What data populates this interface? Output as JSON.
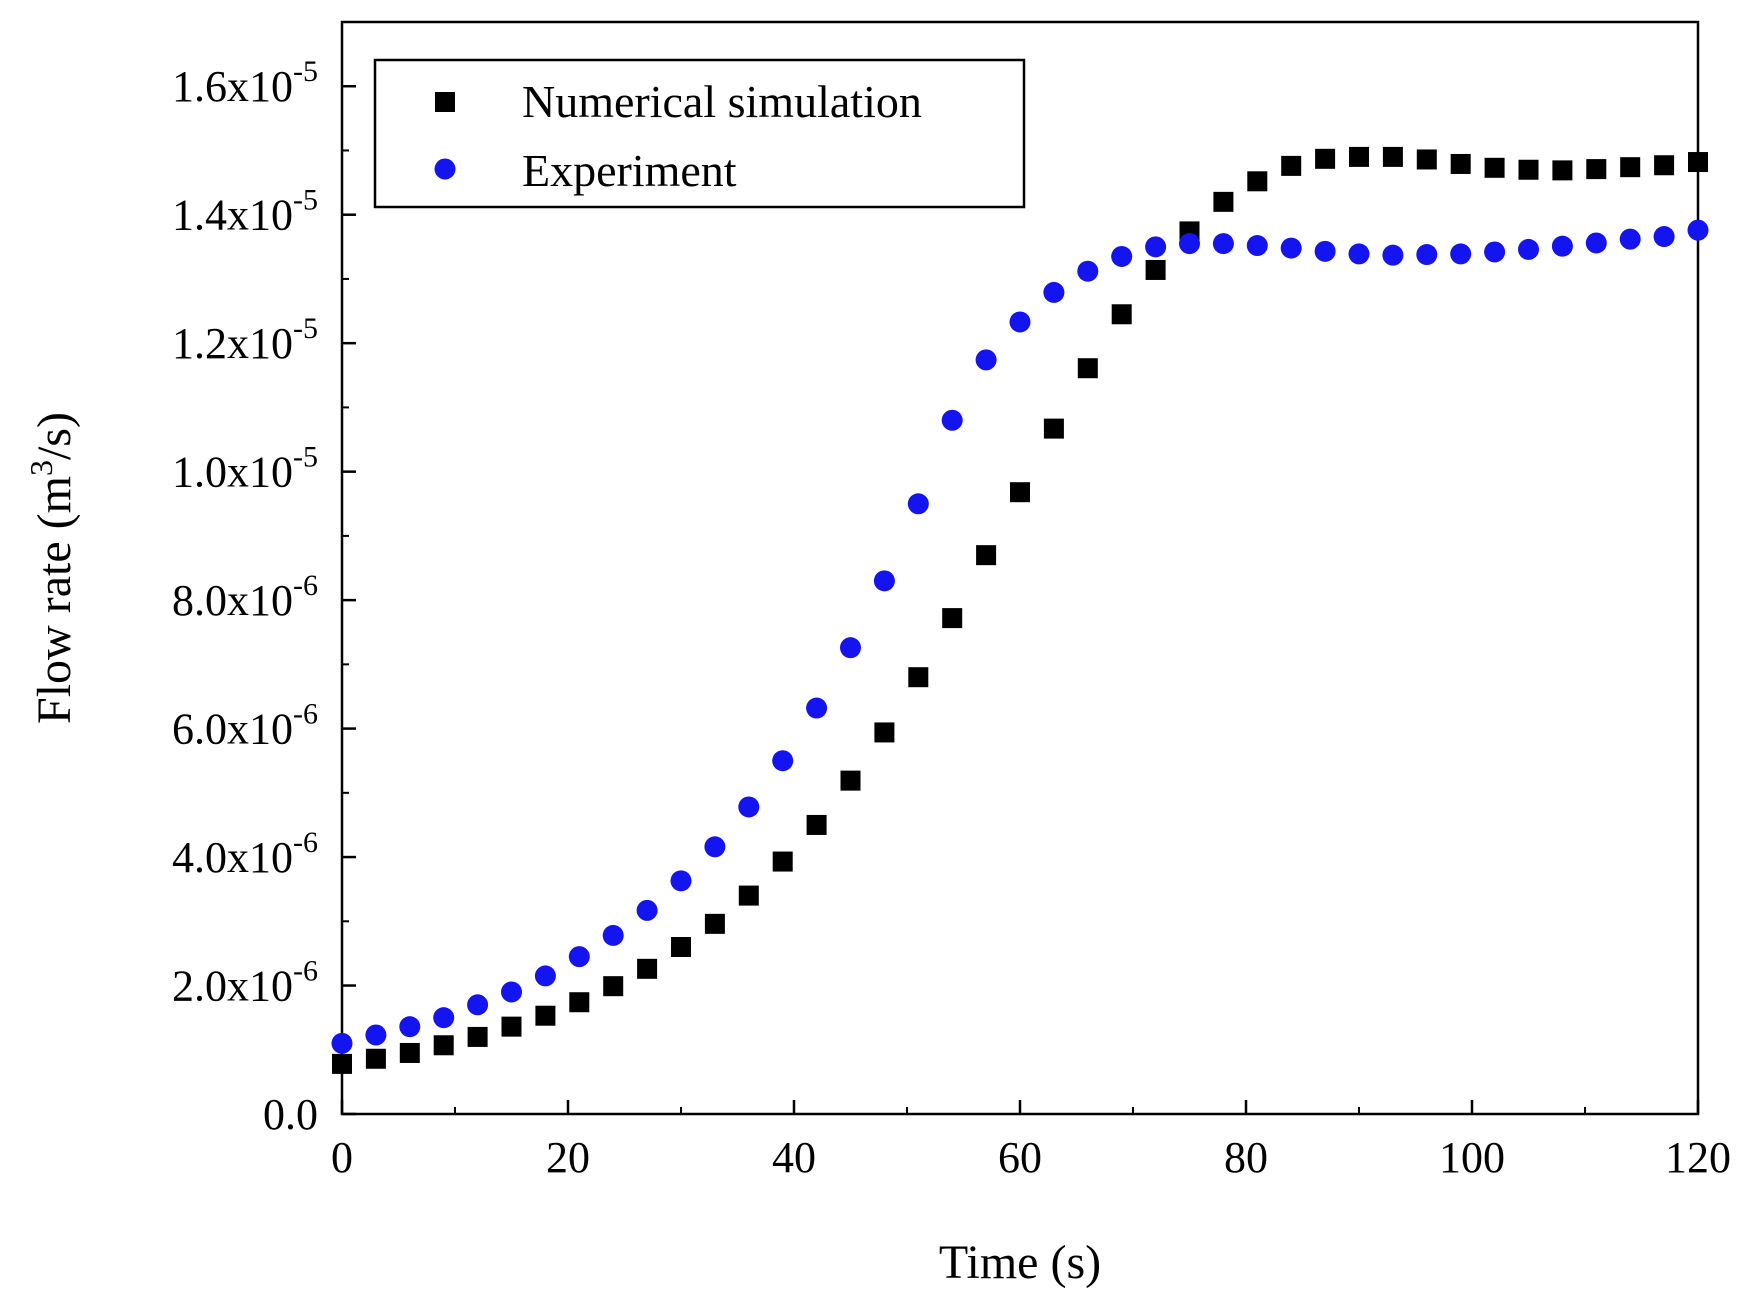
{
  "chart_data": {
    "type": "scatter",
    "xlabel": "Time (s)",
    "ylabel": {
      "prefix": "Flow rate (m",
      "sup": "3",
      "suffix": "/s)"
    },
    "xlim": [
      0,
      120
    ],
    "ylim": [
      0,
      1.7e-05
    ],
    "x_ticks": [
      0,
      20,
      40,
      60,
      80,
      100,
      120
    ],
    "x_tick_labels": [
      "0",
      "20",
      "40",
      "60",
      "80",
      "100",
      "120"
    ],
    "y_ticks": [
      {
        "value": 0,
        "mantissa": "0.0",
        "exp": ""
      },
      {
        "value": 2e-06,
        "mantissa": "2.0x10",
        "exp": "-6"
      },
      {
        "value": 4e-06,
        "mantissa": "4.0x10",
        "exp": "-6"
      },
      {
        "value": 6e-06,
        "mantissa": "6.0x10",
        "exp": "-6"
      },
      {
        "value": 8e-06,
        "mantissa": "8.0x10",
        "exp": "-6"
      },
      {
        "value": 1e-05,
        "mantissa": "1.0x10",
        "exp": "-5"
      },
      {
        "value": 1.2e-05,
        "mantissa": "1.2x10",
        "exp": "-5"
      },
      {
        "value": 1.4e-05,
        "mantissa": "1.4x10",
        "exp": "-5"
      },
      {
        "value": 1.6e-05,
        "mantissa": "1.6x10",
        "exp": "-5"
      }
    ],
    "grid": false,
    "legend_position": "top-left",
    "x": [
      0,
      3,
      6,
      9,
      12,
      15,
      18,
      21,
      24,
      27,
      30,
      33,
      36,
      39,
      42,
      45,
      48,
      51,
      54,
      57,
      60,
      63,
      66,
      69,
      72,
      75,
      78,
      81,
      84,
      87,
      90,
      93,
      96,
      99,
      102,
      105,
      108,
      111,
      114,
      117,
      120
    ],
    "series": [
      {
        "name": "Numerical simulation",
        "marker": "square",
        "color": "#000000",
        "values": [
          7.8e-07,
          8.6e-07,
          9.5e-07,
          1.07e-06,
          1.2e-06,
          1.36e-06,
          1.53e-06,
          1.74e-06,
          1.99e-06,
          2.26e-06,
          2.6e-06,
          2.96e-06,
          3.4e-06,
          3.93e-06,
          4.5e-06,
          5.19e-06,
          5.94e-06,
          6.8e-06,
          7.72e-06,
          8.7e-06,
          9.68e-06,
          1.067e-05,
          1.161e-05,
          1.245e-05,
          1.314e-05,
          1.374e-05,
          1.42e-05,
          1.452e-05,
          1.476e-05,
          1.487e-05,
          1.49e-05,
          1.49e-05,
          1.486e-05,
          1.479e-05,
          1.473e-05,
          1.47e-05,
          1.469e-05,
          1.471e-05,
          1.474e-05,
          1.477e-05,
          1.482e-05
        ]
      },
      {
        "name": "Experiment",
        "marker": "circle",
        "color": "#1414f0",
        "values": [
          1.1e-06,
          1.23e-06,
          1.36e-06,
          1.5e-06,
          1.7e-06,
          1.9e-06,
          2.15e-06,
          2.45e-06,
          2.78e-06,
          3.17e-06,
          3.63e-06,
          4.16e-06,
          4.78e-06,
          5.5e-06,
          6.32e-06,
          7.26e-06,
          8.3e-06,
          9.5e-06,
          1.08e-05,
          1.174e-05,
          1.233e-05,
          1.279e-05,
          1.312e-05,
          1.335e-05,
          1.35e-05,
          1.355e-05,
          1.355e-05,
          1.352e-05,
          1.348e-05,
          1.343e-05,
          1.339e-05,
          1.337e-05,
          1.338e-05,
          1.339e-05,
          1.342e-05,
          1.346e-05,
          1.351e-05,
          1.356e-05,
          1.362e-05,
          1.366e-05,
          1.376e-05
        ]
      }
    ]
  }
}
